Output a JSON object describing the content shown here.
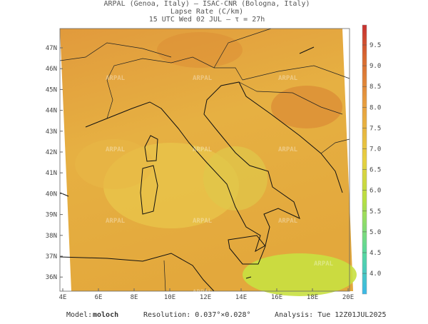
{
  "header": {
    "line1": "ARPAL (Genoa, Italy)  —  ISAC-CNR (Bologna, Italy)",
    "line2": "Lapse Rate (C/km)",
    "line3": "15 UTC Wed 02 JUL  —  τ = 27h"
  },
  "map": {
    "lat_labels": [
      "47N",
      "46N",
      "45N",
      "44N",
      "43N",
      "42N",
      "41N",
      "40N",
      "39N",
      "38N",
      "37N",
      "36N"
    ],
    "lon_labels": [
      "4E",
      "6E",
      "8E",
      "10E",
      "12E",
      "14E",
      "16E",
      "18E",
      "20E"
    ],
    "watermark": "ARPAL"
  },
  "colorbar": {
    "labels": [
      "9.5",
      "9.0",
      "8.5",
      "8.0",
      "7.5",
      "7.0",
      "6.5",
      "6.0",
      "5.5",
      "5.0",
      "4.5",
      "4.0"
    ]
  },
  "footer": {
    "model_label": "Model:",
    "model_name": "moloch",
    "resolution": "Resolution: 0.037°×0.028°",
    "analysis": "Analysis: Tue 12Z01JUL2025"
  }
}
